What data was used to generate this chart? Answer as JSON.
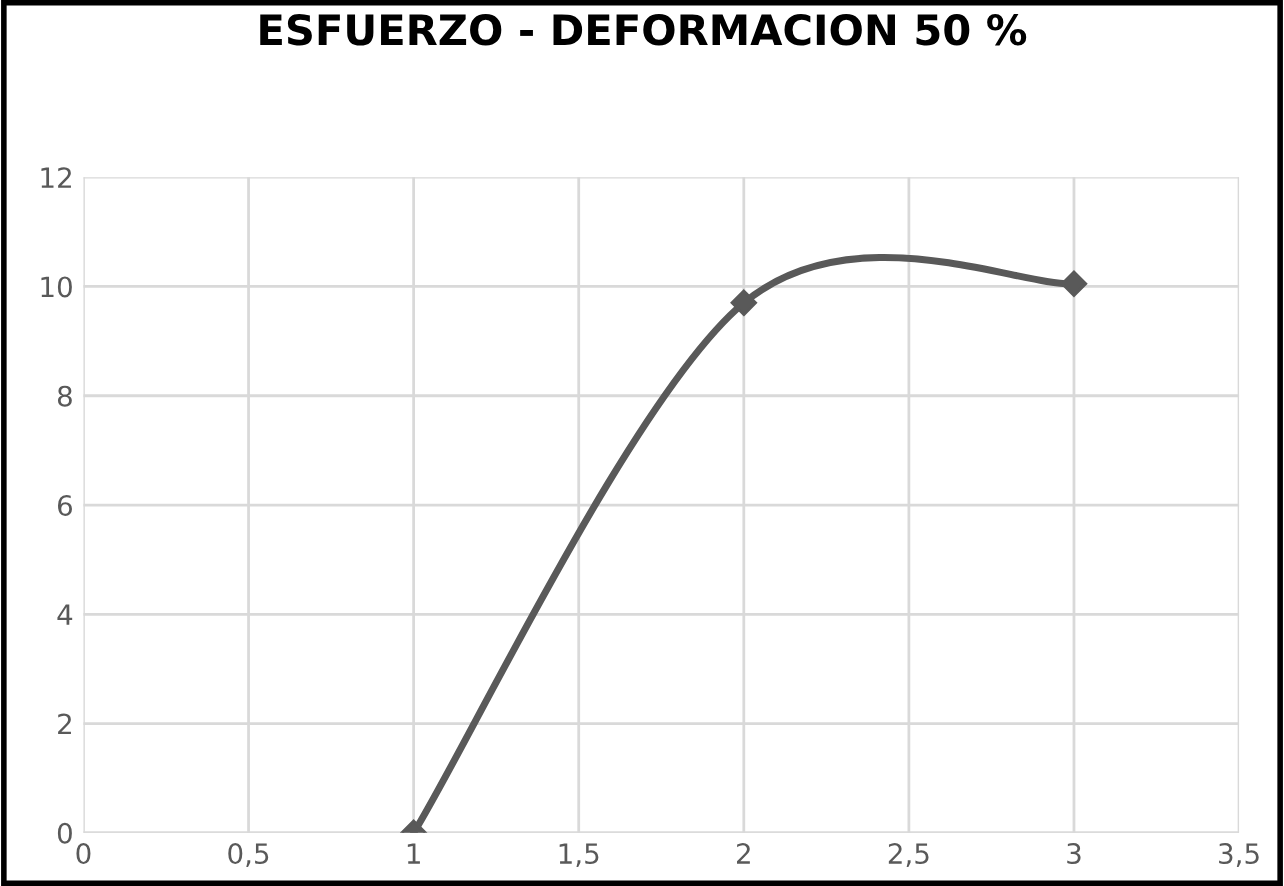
{
  "chart_data": {
    "type": "line",
    "title": "ESFUERZO - DEFORMACION 50 %",
    "x": [
      1,
      2,
      3
    ],
    "series": [
      {
        "color": "#595959",
        "values": [
          0,
          9.7,
          10.05
        ]
      }
    ],
    "xlim": [
      0,
      3.5
    ],
    "xticks": [
      0,
      {
        "value": 0.5,
        "label": "0,5"
      },
      1,
      {
        "value": 1.5,
        "label": "1,5"
      },
      2,
      {
        "value": 2.5,
        "label": "2,5"
      },
      3,
      {
        "value": 3.5,
        "label": "3,5"
      }
    ],
    "ylim": [
      0,
      12
    ],
    "yticks": [
      0,
      2,
      4,
      6,
      8,
      10,
      12
    ],
    "grid": true,
    "marker": "diamond",
    "line_style": "solid"
  }
}
